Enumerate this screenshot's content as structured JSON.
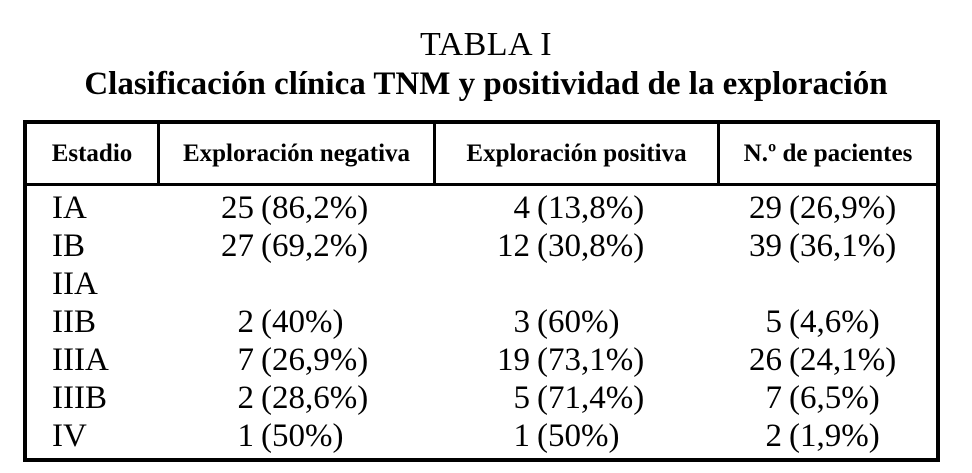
{
  "title": "TABLA I",
  "subtitle": "Clasificación clínica TNM y positividad de la exploración",
  "table": {
    "columns": [
      "Estadio",
      "Exploración negativa",
      "Exploración positiva",
      "N.º de pacientes"
    ],
    "rows": [
      {
        "estadio": "IA",
        "neg_n": "25",
        "neg_pct": "(86,2%)",
        "pos_n": "4",
        "pos_pct": "(13,8%)",
        "tot_n": "29",
        "tot_pct": "(26,9%)"
      },
      {
        "estadio": "IB",
        "neg_n": "27",
        "neg_pct": "(69,2%)",
        "pos_n": "12",
        "pos_pct": "(30,8%)",
        "tot_n": "39",
        "tot_pct": "(36,1%)"
      },
      {
        "estadio": "IIA",
        "neg_n": "",
        "neg_pct": "",
        "pos_n": "",
        "pos_pct": "",
        "tot_n": "",
        "tot_pct": ""
      },
      {
        "estadio": "IIB",
        "neg_n": "2",
        "neg_pct": "(40%)",
        "pos_n": "3",
        "pos_pct": "(60%)",
        "tot_n": "5",
        "tot_pct": "(4,6%)"
      },
      {
        "estadio": "IIIA",
        "neg_n": "7",
        "neg_pct": "(26,9%)",
        "pos_n": "19",
        "pos_pct": "(73,1%)",
        "tot_n": "26",
        "tot_pct": "(24,1%)"
      },
      {
        "estadio": "IIIB",
        "neg_n": "2",
        "neg_pct": "(28,6%)",
        "pos_n": "5",
        "pos_pct": "(71,4%)",
        "tot_n": "7",
        "tot_pct": "(6,5%)"
      },
      {
        "estadio": "IV",
        "neg_n": "1",
        "neg_pct": "(50%)",
        "pos_n": "1",
        "pos_pct": "(50%)",
        "tot_n": "2",
        "tot_pct": "(1,9%)"
      }
    ]
  },
  "colors": {
    "text": "#000000",
    "background": "#ffffff",
    "border": "#000000"
  }
}
